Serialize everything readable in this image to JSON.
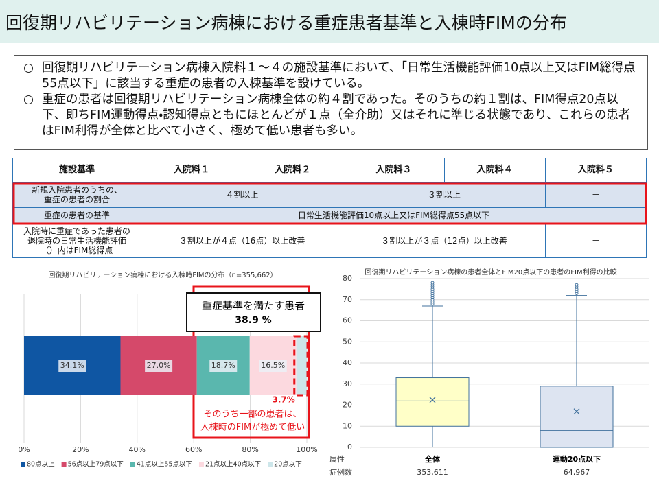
{
  "title": "回復期リハビリテーション病棟における重症患者基準と入棟時FIMの分布",
  "bullets": [
    "回復期リハビリテーション病棟入院料１～４の施設基準において、「日常生活機能評価10点以上又はFIM総得点55点以下」に該当する重症の患者の入棟基準を設けている。",
    "重症の患者は回復期リハビリテーション病棟全体の約４割であった。そのうちの約１割は、FIM得点20点以下、即ちFIM運動得点・認知得点ともにほとんどが１点（全介助）又はそれに準じる状態であり、これらの患者はFIM利得が全体と比べて小さく、極めて低い患者も多い。"
  ],
  "table": {
    "header": [
      "施設基準",
      "入院料１",
      "入院料２",
      "入院料３",
      "入院料４",
      "入院料５"
    ],
    "rows": [
      {
        "label_lines": [
          "新規入院患者のうちの、",
          "重症の患者の割合"
        ],
        "cells": [
          "４割以上",
          "３割以上",
          "－"
        ]
      },
      {
        "label_lines": [
          "重症の患者の基準"
        ],
        "cells": [
          "日常生活機能評価10点以上又はFIM総得点55点以下"
        ]
      },
      {
        "label_lines": [
          "入院時に重症であった患者の",
          "退院時の日常生活機能評価",
          "（）内はFIM総得点"
        ],
        "cells": [
          "３割以上が４点（16点）以上改善",
          "３割以上が３点（12点）以上改善",
          "－"
        ]
      }
    ]
  },
  "chart_data": [
    {
      "type": "stacked_bar",
      "orientation": "horizontal",
      "title": "回復期リハビリテーション病棟における入棟時FIMの分布（n=355,662）",
      "categories": [
        null
      ],
      "series": [
        {
          "name": "80点以上",
          "color": "#0f56a3",
          "values": [
            34.1
          ],
          "value_labels": [
            "34.1%"
          ]
        },
        {
          "name": "56点以上79点以下",
          "color": "#d5496a",
          "values": [
            27.0
          ],
          "value_labels": [
            "27.0%"
          ]
        },
        {
          "name": "41点以上55点以下",
          "color": "#5ab7ae",
          "values": [
            18.7
          ],
          "value_labels": [
            "18.7%"
          ]
        },
        {
          "name": "21点以上40点以下",
          "color": "#fcd9df",
          "values": [
            16.5
          ],
          "value_labels": [
            "16.5%"
          ]
        },
        {
          "name": "20点以下",
          "color": "#cde6ea",
          "values": [
            3.7
          ],
          "value_labels": [
            "3.7%"
          ]
        }
      ],
      "xlim": [
        0,
        100
      ],
      "xticks": [
        {
          "value": 0,
          "label": "0%"
        },
        {
          "value": 20,
          "label": "20%"
        },
        {
          "value": 40,
          "label": "40%"
        },
        {
          "value": 60,
          "label": "60%"
        },
        {
          "value": 80,
          "label": "80%"
        },
        {
          "value": 100,
          "label": "100%"
        }
      ],
      "grid": true,
      "legend": "bottom",
      "highlight_title": "重症基準を満たす患者",
      "highlight_label": "38.9 %",
      "note_lines": [
        "そのうち一部の患者は、",
        "入棟時のFIMが極めて低い"
      ]
    },
    {
      "type": "box",
      "title": "回復期リハビリテーション病棟の患者全体とFIM20点以下の患者のFIM利得の比較",
      "categories": [
        "全体",
        "運動20点以下"
      ],
      "category_header": "属性",
      "count_header": "症例数",
      "counts": [
        "353,611",
        "64,967"
      ],
      "line_color": "#41719c",
      "boxes": [
        {
          "fill": "#ffffc8",
          "min": 0,
          "q1": 10,
          "median": 22,
          "q3": 33,
          "max": 67,
          "mean": 22.5,
          "outliers": [
            68,
            69,
            70,
            71,
            72,
            73,
            74,
            75,
            76,
            77,
            78
          ]
        },
        {
          "fill": "#dde4f1",
          "min": 0,
          "q1": 0,
          "median": 8,
          "q3": 29,
          "max": 72,
          "mean": 17,
          "outliers": [
            73,
            74,
            75,
            76,
            77
          ]
        }
      ],
      "ylim": [
        0,
        80
      ],
      "yticks": [
        0,
        10,
        20,
        30,
        40,
        50,
        60,
        70,
        80
      ],
      "grid": true
    }
  ]
}
